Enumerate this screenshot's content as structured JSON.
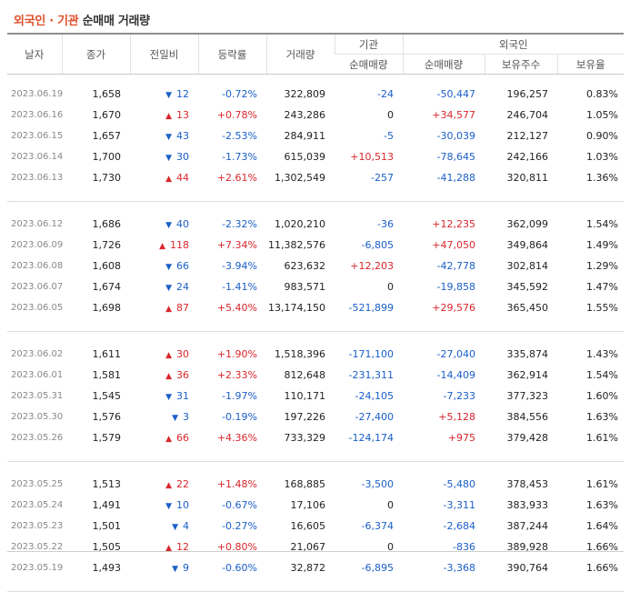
{
  "title": {
    "highlight": "외국인 · 기관",
    "rest": "순매매 거래량"
  },
  "headers": {
    "date": "날자",
    "close": "종가",
    "change": "전일비",
    "rate": "등락률",
    "volume": "거래량",
    "inst_group": "기관",
    "inst_net": "순매매량",
    "foreign_group": "외국인",
    "foreign_net": "순매매량",
    "foreign_holdings": "보유주수",
    "foreign_ratio": "보유율"
  },
  "colors": {
    "up": "#d9262c",
    "down": "#1a5fc7",
    "title_accent": "#e0502b"
  },
  "groups": [
    [
      {
        "date": "2023.06.19",
        "close": "1,658",
        "dir": "down",
        "change": "12",
        "rate": "-0.72%",
        "volume": "322,809",
        "inst": "-24",
        "foreign": "-50,447",
        "holdings": "196,257",
        "ratio": "0.83%"
      },
      {
        "date": "2023.06.16",
        "close": "1,670",
        "dir": "up",
        "change": "13",
        "rate": "+0.78%",
        "volume": "243,286",
        "inst": "0",
        "foreign": "+34,577",
        "holdings": "246,704",
        "ratio": "1.05%"
      },
      {
        "date": "2023.06.15",
        "close": "1,657",
        "dir": "down",
        "change": "43",
        "rate": "-2.53%",
        "volume": "284,911",
        "inst": "-5",
        "foreign": "-30,039",
        "holdings": "212,127",
        "ratio": "0.90%"
      },
      {
        "date": "2023.06.14",
        "close": "1,700",
        "dir": "down",
        "change": "30",
        "rate": "-1.73%",
        "volume": "615,039",
        "inst": "+10,513",
        "foreign": "-78,645",
        "holdings": "242,166",
        "ratio": "1.03%"
      },
      {
        "date": "2023.06.13",
        "close": "1,730",
        "dir": "up",
        "change": "44",
        "rate": "+2.61%",
        "volume": "1,302,549",
        "inst": "-257",
        "foreign": "-41,288",
        "holdings": "320,811",
        "ratio": "1.36%"
      }
    ],
    [
      {
        "date": "2023.06.12",
        "close": "1,686",
        "dir": "down",
        "change": "40",
        "rate": "-2.32%",
        "volume": "1,020,210",
        "inst": "-36",
        "foreign": "+12,235",
        "holdings": "362,099",
        "ratio": "1.54%"
      },
      {
        "date": "2023.06.09",
        "close": "1,726",
        "dir": "up",
        "change": "118",
        "rate": "+7.34%",
        "volume": "11,382,576",
        "inst": "-6,805",
        "foreign": "+47,050",
        "holdings": "349,864",
        "ratio": "1.49%"
      },
      {
        "date": "2023.06.08",
        "close": "1,608",
        "dir": "down",
        "change": "66",
        "rate": "-3.94%",
        "volume": "623,632",
        "inst": "+12,203",
        "foreign": "-42,778",
        "holdings": "302,814",
        "ratio": "1.29%"
      },
      {
        "date": "2023.06.07",
        "close": "1,674",
        "dir": "down",
        "change": "24",
        "rate": "-1.41%",
        "volume": "983,571",
        "inst": "0",
        "foreign": "-19,858",
        "holdings": "345,592",
        "ratio": "1.47%"
      },
      {
        "date": "2023.06.05",
        "close": "1,698",
        "dir": "up",
        "change": "87",
        "rate": "+5.40%",
        "volume": "13,174,150",
        "inst": "-521,899",
        "foreign": "+29,576",
        "holdings": "365,450",
        "ratio": "1.55%"
      }
    ],
    [
      {
        "date": "2023.06.02",
        "close": "1,611",
        "dir": "up",
        "change": "30",
        "rate": "+1.90%",
        "volume": "1,518,396",
        "inst": "-171,100",
        "foreign": "-27,040",
        "holdings": "335,874",
        "ratio": "1.43%"
      },
      {
        "date": "2023.06.01",
        "close": "1,581",
        "dir": "up",
        "change": "36",
        "rate": "+2.33%",
        "volume": "812,648",
        "inst": "-231,311",
        "foreign": "-14,409",
        "holdings": "362,914",
        "ratio": "1.54%"
      },
      {
        "date": "2023.05.31",
        "close": "1,545",
        "dir": "down",
        "change": "31",
        "rate": "-1.97%",
        "volume": "110,171",
        "inst": "-24,105",
        "foreign": "-7,233",
        "holdings": "377,323",
        "ratio": "1.60%"
      },
      {
        "date": "2023.05.30",
        "close": "1,576",
        "dir": "down",
        "change": "3",
        "rate": "-0.19%",
        "volume": "197,226",
        "inst": "-27,400",
        "foreign": "+5,128",
        "holdings": "384,556",
        "ratio": "1.63%"
      },
      {
        "date": "2023.05.26",
        "close": "1,579",
        "dir": "up",
        "change": "66",
        "rate": "+4.36%",
        "volume": "733,329",
        "inst": "-124,174",
        "foreign": "+975",
        "holdings": "379,428",
        "ratio": "1.61%"
      }
    ],
    [
      {
        "date": "2023.05.25",
        "close": "1,513",
        "dir": "up",
        "change": "22",
        "rate": "+1.48%",
        "volume": "168,885",
        "inst": "-3,500",
        "foreign": "-5,480",
        "holdings": "378,453",
        "ratio": "1.61%"
      },
      {
        "date": "2023.05.24",
        "close": "1,491",
        "dir": "down",
        "change": "10",
        "rate": "-0.67%",
        "volume": "17,106",
        "inst": "0",
        "foreign": "-3,311",
        "holdings": "383,933",
        "ratio": "1.63%"
      },
      {
        "date": "2023.05.23",
        "close": "1,501",
        "dir": "down",
        "change": "4",
        "rate": "-0.27%",
        "volume": "16,605",
        "inst": "-6,374",
        "foreign": "-2,684",
        "holdings": "387,244",
        "ratio": "1.64%"
      },
      {
        "date": "2023.05.22",
        "close": "1,505",
        "dir": "up",
        "change": "12",
        "rate": "+0.80%",
        "volume": "21,067",
        "inst": "0",
        "foreign": "-836",
        "holdings": "389,928",
        "ratio": "1.66%"
      },
      {
        "date": "2023.05.19",
        "close": "1,493",
        "dir": "down",
        "change": "9",
        "rate": "-0.60%",
        "volume": "32,872",
        "inst": "-6,895",
        "foreign": "-3,368",
        "holdings": "390,764",
        "ratio": "1.66%"
      }
    ]
  ]
}
